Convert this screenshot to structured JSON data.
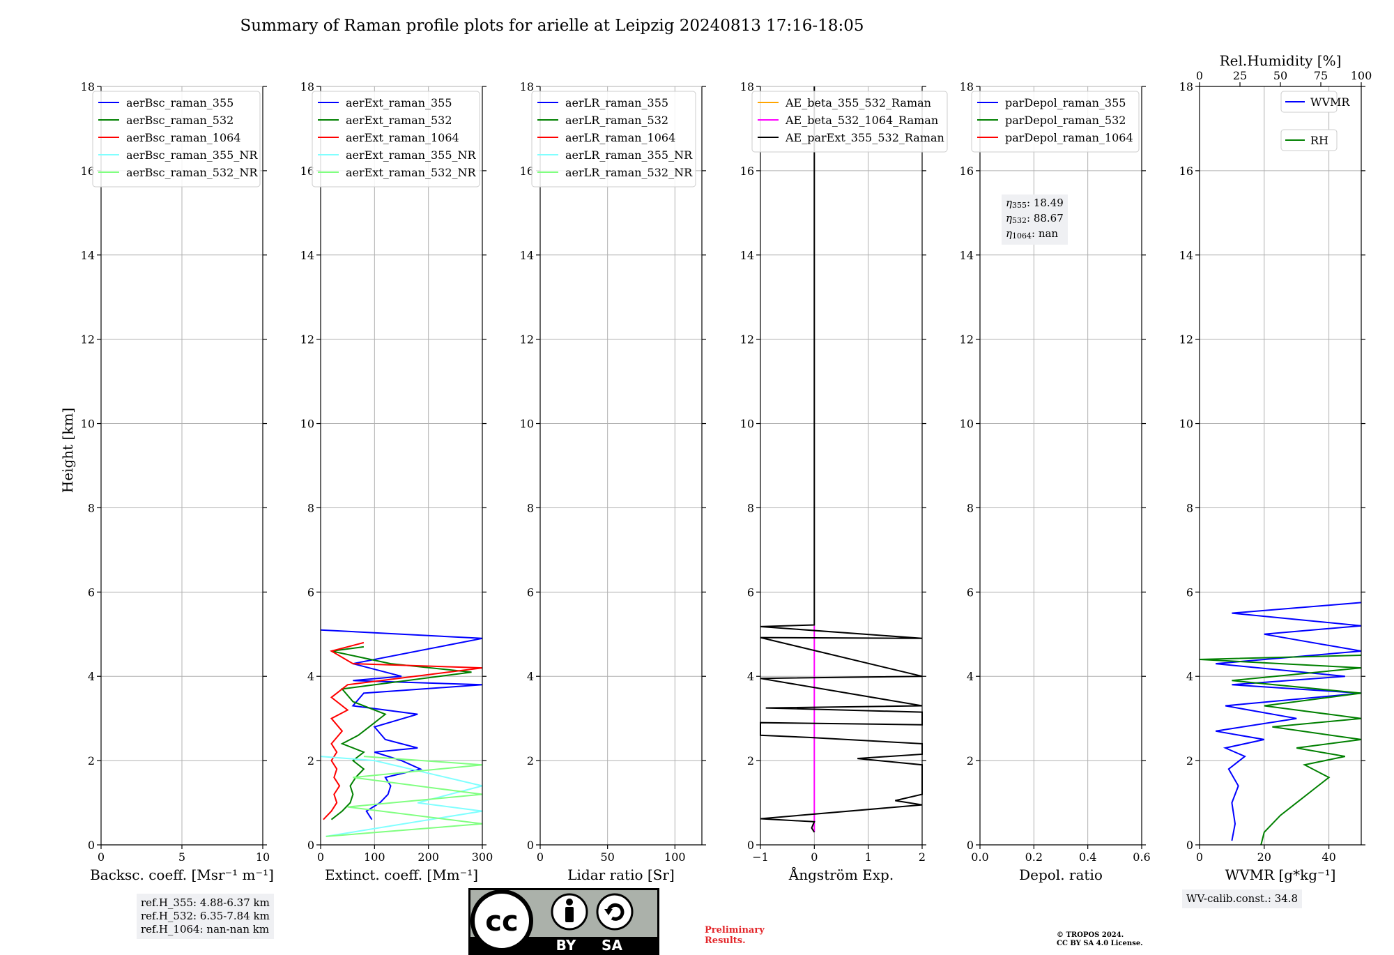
{
  "figure": {
    "title": "Summary of Raman profile plots for arielle at Leipzig 20240813 17:16-18:05",
    "y_label": "Height [km]"
  },
  "chart_data": [
    {
      "type": "line",
      "xlabel": "Backsc. coeff. [Msr⁻¹ m⁻¹]",
      "ylabel": "Height [km]",
      "xlim": [
        0,
        10
      ],
      "ylim": [
        0,
        18
      ],
      "xticks": [
        0,
        5,
        10
      ],
      "yticks": [
        0,
        2,
        4,
        6,
        8,
        10,
        12,
        14,
        16,
        18
      ],
      "grid": true,
      "legend_position": "top-left",
      "series": [
        {
          "name": "aerBsc_raman_355",
          "color": "#0000ff",
          "points": []
        },
        {
          "name": "aerBsc_raman_532",
          "color": "#008000",
          "points": []
        },
        {
          "name": "aerBsc_raman_1064",
          "color": "#ff0000",
          "points": []
        },
        {
          "name": "aerBsc_raman_355_NR",
          "color": "#80ffff",
          "points": []
        },
        {
          "name": "aerBsc_raman_532_NR",
          "color": "#80ff80",
          "points": []
        }
      ]
    },
    {
      "type": "line",
      "xlabel": "Extinct. coeff. [Mm⁻¹]",
      "ylabel": "Height [km]",
      "xlim": [
        0,
        300
      ],
      "ylim": [
        0,
        18
      ],
      "xticks": [
        0,
        100,
        200,
        300
      ],
      "yticks": [
        0,
        2,
        4,
        6,
        8,
        10,
        12,
        14,
        16,
        18
      ],
      "grid": true,
      "legend_position": "top-left",
      "series": [
        {
          "name": "aerExt_raman_355",
          "color": "#0000ff",
          "points": [
            [
              95,
              0.6
            ],
            [
              85,
              0.8
            ],
            [
              110,
              1.0
            ],
            [
              125,
              1.2
            ],
            [
              130,
              1.4
            ],
            [
              120,
              1.6
            ],
            [
              185,
              1.8
            ],
            [
              150,
              2.0
            ],
            [
              100,
              2.2
            ],
            [
              180,
              2.3
            ],
            [
              120,
              2.5
            ],
            [
              100,
              2.8
            ],
            [
              180,
              3.1
            ],
            [
              60,
              3.3
            ],
            [
              80,
              3.6
            ],
            [
              300,
              3.8
            ],
            [
              60,
              3.9
            ],
            [
              150,
              4.0
            ],
            [
              60,
              4.3
            ],
            [
              300,
              4.9
            ],
            [
              0,
              5.1
            ]
          ]
        },
        {
          "name": "aerExt_raman_532",
          "color": "#008000",
          "points": [
            [
              20,
              0.6
            ],
            [
              40,
              0.8
            ],
            [
              55,
              1.0
            ],
            [
              60,
              1.2
            ],
            [
              55,
              1.4
            ],
            [
              65,
              1.6
            ],
            [
              80,
              1.8
            ],
            [
              60,
              2.0
            ],
            [
              80,
              2.2
            ],
            [
              40,
              2.4
            ],
            [
              70,
              2.6
            ],
            [
              90,
              2.8
            ],
            [
              120,
              3.1
            ],
            [
              60,
              3.4
            ],
            [
              40,
              3.7
            ],
            [
              280,
              4.1
            ],
            [
              130,
              4.3
            ],
            [
              20,
              4.6
            ],
            [
              80,
              4.7
            ]
          ]
        },
        {
          "name": "aerExt_raman_1064",
          "color": "#ff0000",
          "points": [
            [
              5,
              0.6
            ],
            [
              20,
              0.8
            ],
            [
              30,
              1.0
            ],
            [
              25,
              1.2
            ],
            [
              35,
              1.4
            ],
            [
              25,
              1.6
            ],
            [
              30,
              1.8
            ],
            [
              20,
              2.0
            ],
            [
              30,
              2.2
            ],
            [
              20,
              2.4
            ],
            [
              40,
              2.7
            ],
            [
              20,
              3.0
            ],
            [
              50,
              3.2
            ],
            [
              20,
              3.5
            ],
            [
              50,
              3.8
            ],
            [
              300,
              4.2
            ],
            [
              60,
              4.3
            ],
            [
              20,
              4.6
            ],
            [
              80,
              4.8
            ]
          ]
        },
        {
          "name": "aerExt_raman_355_NR",
          "color": "#80ffff",
          "points": [
            [
              10,
              0.2
            ],
            [
              300,
              0.8
            ],
            [
              180,
              1.0
            ],
            [
              300,
              1.4
            ],
            [
              100,
              2.0
            ],
            [
              0,
              2.1
            ]
          ]
        },
        {
          "name": "aerExt_raman_532_NR",
          "color": "#80ff80",
          "points": [
            [
              10,
              0.2
            ],
            [
              300,
              0.5
            ],
            [
              50,
              0.9
            ],
            [
              300,
              1.2
            ],
            [
              60,
              1.6
            ],
            [
              300,
              1.9
            ],
            [
              80,
              2.1
            ]
          ]
        }
      ]
    },
    {
      "type": "line",
      "xlabel": "Lidar ratio [Sr]",
      "ylabel": "Height [km]",
      "xlim": [
        0,
        120
      ],
      "ylim": [
        0,
        18
      ],
      "xticks": [
        0,
        50,
        100
      ],
      "yticks": [
        0,
        2,
        4,
        6,
        8,
        10,
        12,
        14,
        16,
        18
      ],
      "grid": true,
      "legend_position": "top-left",
      "series": [
        {
          "name": "aerLR_raman_355",
          "color": "#0000ff",
          "points": []
        },
        {
          "name": "aerLR_raman_532",
          "color": "#008000",
          "points": []
        },
        {
          "name": "aerLR_raman_1064",
          "color": "#ff0000",
          "points": []
        },
        {
          "name": "aerLR_raman_355_NR",
          "color": "#80ffff",
          "points": []
        },
        {
          "name": "aerLR_raman_532_NR",
          "color": "#80ff80",
          "points": []
        }
      ]
    },
    {
      "type": "line",
      "xlabel": "Ångström Exp.",
      "ylabel": "Height [km]",
      "xlim": [
        -1,
        2
      ],
      "ylim": [
        0,
        18
      ],
      "xticks": [
        -1,
        0,
        1,
        2
      ],
      "yticks": [
        0,
        2,
        4,
        6,
        8,
        10,
        12,
        14,
        16,
        18
      ],
      "grid": true,
      "legend_position": "top-left",
      "series": [
        {
          "name": "AE_beta_355_532_Raman",
          "color": "#ffa500",
          "points": []
        },
        {
          "name": "AE_beta_532_1064_Raman",
          "color": "#ff00ff",
          "points": [
            [
              0,
              0.3
            ],
            [
              0,
              5.2
            ]
          ]
        },
        {
          "name": "AE_parExt_355_532_Raman",
          "color": "#000000",
          "points": [
            [
              0,
              0.3
            ],
            [
              -0.05,
              0.4
            ],
            [
              0,
              0.55
            ],
            [
              -1,
              0.62
            ],
            [
              2,
              0.95
            ],
            [
              1.5,
              1.05
            ],
            [
              2,
              1.2
            ],
            [
              2,
              1.9
            ],
            [
              0.8,
              2.05
            ],
            [
              2,
              2.15
            ],
            [
              2,
              2.4
            ],
            [
              -0.1,
              2.55
            ],
            [
              -1,
              2.6
            ],
            [
              -1,
              2.9
            ],
            [
              2,
              2.85
            ],
            [
              2,
              3.15
            ],
            [
              -0.9,
              3.25
            ],
            [
              2,
              3.3
            ],
            [
              -1,
              3.95
            ],
            [
              2,
              4.0
            ],
            [
              -1,
              4.92
            ],
            [
              2,
              4.9
            ],
            [
              -1,
              5.18
            ],
            [
              0,
              5.22
            ],
            [
              0,
              18
            ]
          ]
        }
      ]
    },
    {
      "type": "line",
      "xlabel": "Depol. ratio",
      "ylabel": "Height [km]",
      "xlim": [
        0,
        0.6
      ],
      "ylim": [
        0,
        18
      ],
      "xticks": [
        0.0,
        0.2,
        0.4,
        0.6
      ],
      "yticks": [
        0,
        2,
        4,
        6,
        8,
        10,
        12,
        14,
        16,
        18
      ],
      "grid": true,
      "legend_position": "top-left",
      "series": [
        {
          "name": "parDepol_raman_355",
          "color": "#0000ff",
          "points": []
        },
        {
          "name": "parDepol_raman_532",
          "color": "#008000",
          "points": []
        },
        {
          "name": "parDepol_raman_1064",
          "color": "#ff0000",
          "points": []
        }
      ]
    },
    {
      "type": "line",
      "xlabel": "WVMR [g*kg⁻¹]",
      "x2label": "Rel.Humidity [%]",
      "ylabel": "Height [km]",
      "xlim": [
        0,
        50
      ],
      "x2lim": [
        0,
        100
      ],
      "ylim": [
        0,
        18
      ],
      "xticks": [
        0,
        20,
        40
      ],
      "x2ticks": [
        0,
        25,
        50,
        75,
        100
      ],
      "yticks": [
        0,
        2,
        4,
        6,
        8,
        10,
        12,
        14,
        16,
        18
      ],
      "grid": true,
      "legend_position": "top-right",
      "series": [
        {
          "name": "WVMR",
          "color": "#0000ff",
          "axis": "bottom",
          "points": [
            [
              10,
              0.1
            ],
            [
              11,
              0.5
            ],
            [
              10,
              1.0
            ],
            [
              12,
              1.4
            ],
            [
              9,
              1.8
            ],
            [
              14,
              2.1
            ],
            [
              8,
              2.3
            ],
            [
              20,
              2.5
            ],
            [
              5,
              2.7
            ],
            [
              30,
              3.0
            ],
            [
              8,
              3.3
            ],
            [
              50,
              3.6
            ],
            [
              10,
              3.8
            ],
            [
              45,
              4.0
            ],
            [
              5,
              4.3
            ],
            [
              50,
              4.6
            ],
            [
              20,
              5.0
            ],
            [
              50,
              5.2
            ],
            [
              10,
              5.5
            ],
            [
              50,
              5.75
            ]
          ]
        },
        {
          "name": "RH",
          "color": "#008000",
          "axis": "top",
          "points": [
            [
              38,
              0.0
            ],
            [
              40,
              0.3
            ],
            [
              50,
              0.7
            ],
            [
              60,
              1.0
            ],
            [
              70,
              1.3
            ],
            [
              80,
              1.6
            ],
            [
              65,
              1.9
            ],
            [
              90,
              2.1
            ],
            [
              60,
              2.3
            ],
            [
              100,
              2.5
            ],
            [
              45,
              2.8
            ],
            [
              100,
              3.0
            ],
            [
              40,
              3.3
            ],
            [
              100,
              3.6
            ],
            [
              20,
              3.9
            ],
            [
              100,
              4.2
            ],
            [
              0,
              4.4
            ],
            [
              100,
              4.5
            ]
          ]
        }
      ]
    }
  ],
  "panel_text": {
    "ref_lines": [
      "ref.H_355: 4.88-6.37 km",
      "ref.H_532: 6.35-7.84 km",
      "ref.H_1064: nan-nan km"
    ],
    "eta_lines": [
      {
        "sym": "η",
        "sub": "355",
        "val": ": 18.49"
      },
      {
        "sym": "η",
        "sub": "532",
        "val": ": 88.67"
      },
      {
        "sym": "η",
        "sub": "1064",
        "val": ": nan"
      }
    ],
    "wv_calib": "WV-calib.const.: 34.8"
  },
  "footer": {
    "prelim_line1": "Preliminary",
    "prelim_line2": "Results.",
    "copyright_line1": "© TROPOS 2024.",
    "copyright_line2": "CC BY SA 4.0 License.",
    "cc_by": "BY",
    "cc_sa": "SA",
    "cc_mark": "cc"
  }
}
